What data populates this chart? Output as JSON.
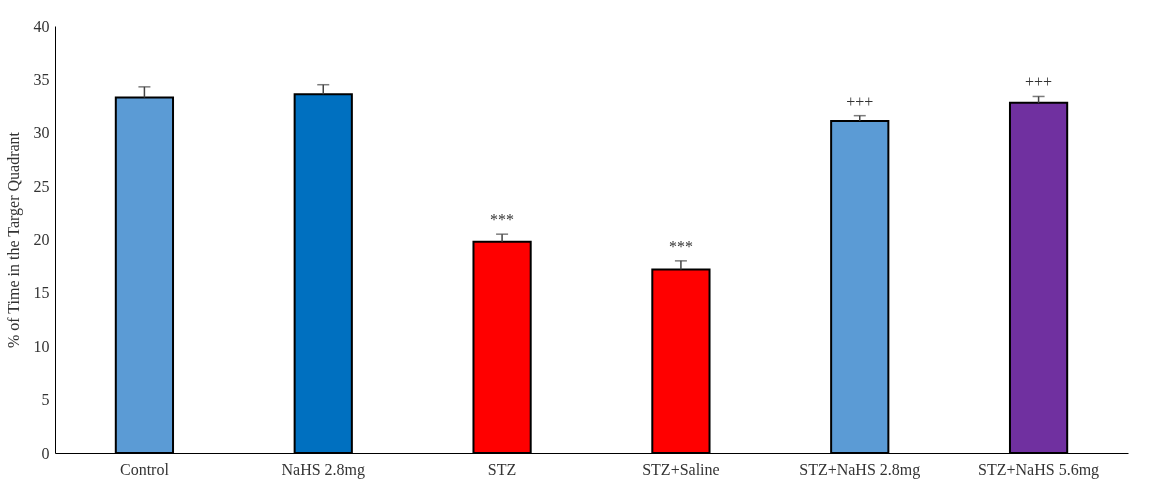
{
  "chart_data": {
    "type": "bar",
    "ylabel": "% of Time in the Targer Quadrant",
    "categories": [
      "Control",
      "NaHS 2.8mg",
      "STZ",
      "STZ+Saline",
      "STZ+NaHS 2.8mg",
      "STZ+NaHS 5.6mg"
    ],
    "values": [
      33.3,
      33.6,
      19.8,
      17.2,
      31.1,
      32.8
    ],
    "errors": [
      [
        33.3,
        34.3
      ],
      [
        33.6,
        34.5
      ],
      [
        19.8,
        20.5
      ],
      [
        17.2,
        18.0
      ],
      [
        31.1,
        31.6
      ],
      [
        32.8,
        33.4
      ]
    ],
    "colors": [
      "#5b9bd5",
      "#0070c0",
      "#ff0000",
      "#ff0000",
      "#5b9bd5",
      "#7030a0"
    ],
    "ylim": [
      0,
      40
    ],
    "yticks": [
      0,
      5,
      10,
      15,
      20,
      25,
      30,
      35,
      40
    ],
    "grid": false,
    "legend": false,
    "annotations": [
      {
        "text": "***",
        "x": "STZ",
        "y": 20.5
      },
      {
        "text": "***",
        "x": "STZ+Saline",
        "y": 18.0
      },
      {
        "text": "+++",
        "x": "STZ+NaHS 2.8mg",
        "y": 31.6
      },
      {
        "text": "+++",
        "x": "STZ+NaHS 5.6mg",
        "y": 33.4
      }
    ]
  }
}
